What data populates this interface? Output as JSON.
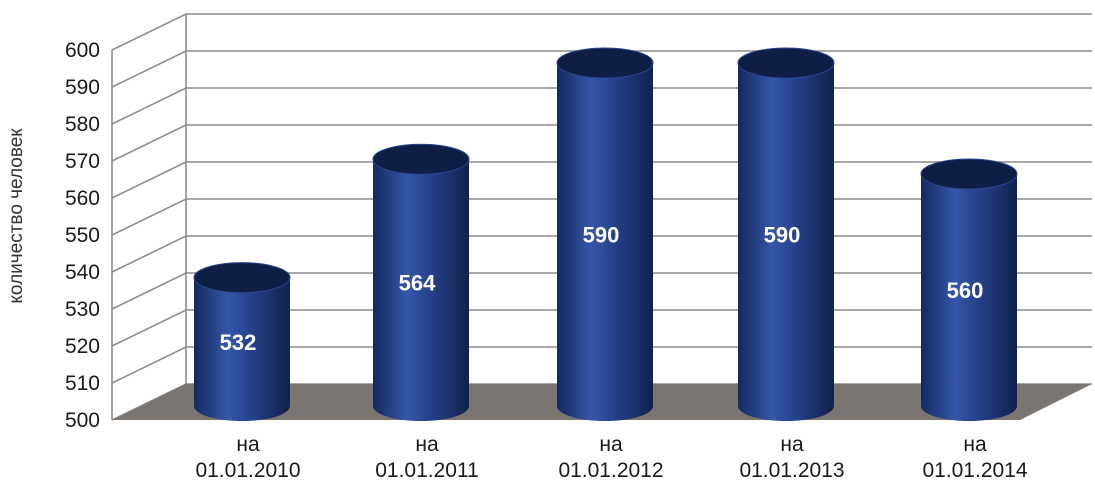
{
  "chart_data": {
    "type": "bar",
    "style": "3d-cylinder",
    "title": "",
    "xlabel": "",
    "ylabel": "количество человек",
    "ylim": [
      500,
      600
    ],
    "yticks": [
      500,
      510,
      520,
      530,
      540,
      550,
      560,
      570,
      580,
      590,
      600
    ],
    "grid": true,
    "legend": "none",
    "categories": [
      [
        "на",
        "01.01.2010"
      ],
      [
        "на",
        "01.01.2011"
      ],
      [
        "на",
        "01.01.2012"
      ],
      [
        "на",
        "01.01.2013"
      ],
      [
        "на",
        "01.01.2014"
      ]
    ],
    "values": [
      532,
      564,
      590,
      590,
      560
    ],
    "colors": {
      "bar": "#1f3a7a",
      "bar_top": "#0e1e45",
      "floor": "#7a7570",
      "grid": "#8c8c8c"
    }
  }
}
